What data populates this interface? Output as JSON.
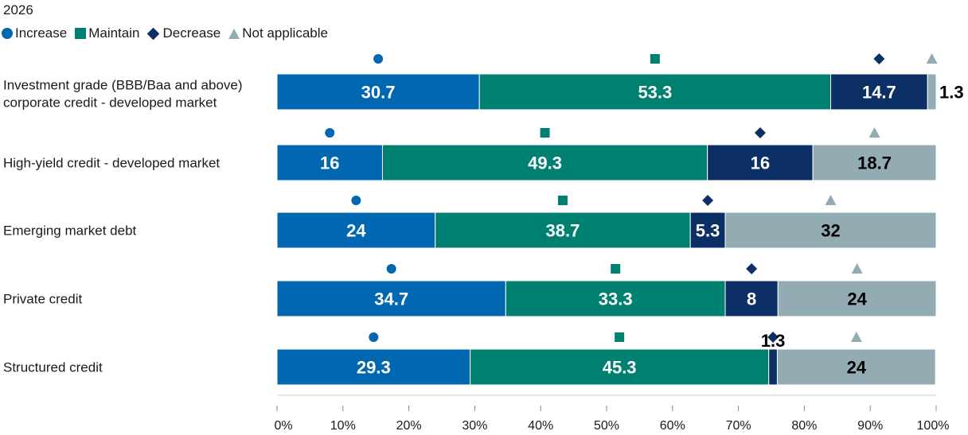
{
  "chart_data": {
    "type": "bar",
    "orientation": "horizontal",
    "stacked": true,
    "title": "2026",
    "categories": [
      [
        "Investment grade (BBB/Baa and above)",
        "corporate credit - developed market"
      ],
      [
        "High-yield credit - developed market"
      ],
      [
        "Emerging market debt"
      ],
      [
        "Private credit"
      ],
      [
        "Structured credit"
      ]
    ],
    "series": [
      {
        "name": "Increase",
        "color": "#0067b0",
        "marker": "circle",
        "label_color": "#ffffff",
        "values": [
          30.7,
          16,
          24,
          34.7,
          29.3
        ]
      },
      {
        "name": "Maintain",
        "color": "#008070",
        "marker": "square",
        "label_color": "#ffffff",
        "values": [
          53.3,
          49.3,
          38.7,
          33.3,
          45.3
        ]
      },
      {
        "name": "Decrease",
        "color": "#0c2f66",
        "marker": "diamond",
        "label_color": "#ffffff",
        "values": [
          14.7,
          16,
          5.3,
          8,
          1.3
        ]
      },
      {
        "name": "Not applicable",
        "color": "#93abb3",
        "marker": "triangle",
        "label_color": "#000000",
        "values": [
          1.3,
          18.7,
          32,
          24,
          24
        ]
      }
    ],
    "xlim": [
      0,
      100
    ],
    "xticks": [
      "0%",
      "10%",
      "20%",
      "30%",
      "40%",
      "50%",
      "60%",
      "70%",
      "80%",
      "90%",
      "100%"
    ],
    "legend_position": "top-left"
  }
}
